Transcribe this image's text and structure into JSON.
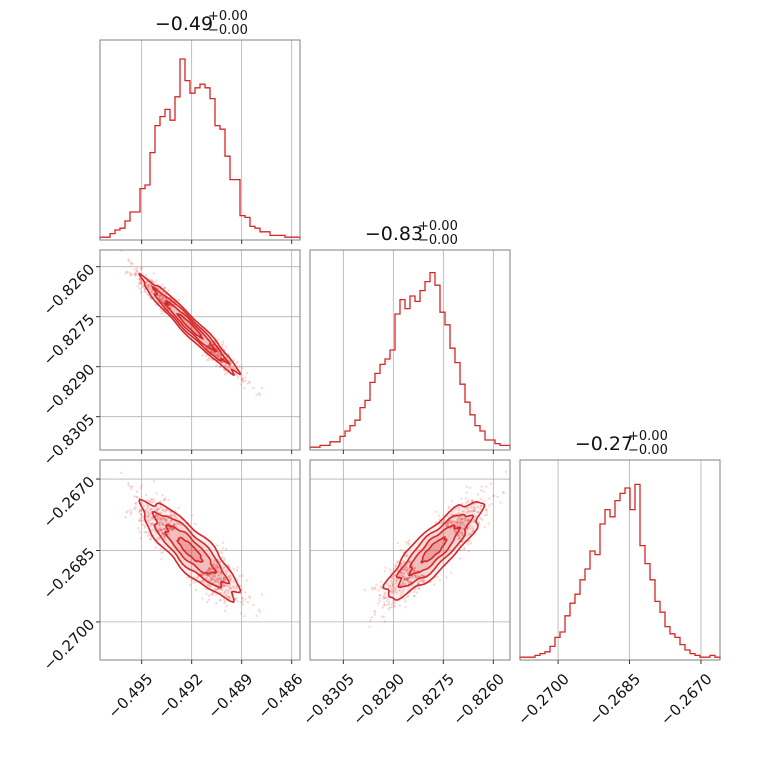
{
  "chart_data": {
    "type": "corner",
    "color": "#d62728",
    "parameters": [
      {
        "title": "−0.49",
        "err_plus": "+0.00",
        "err_minus": "−0.00",
        "range": [
          -0.4975,
          -0.4855
        ],
        "ticks": [
          -0.495,
          -0.492,
          -0.489,
          -0.486
        ],
        "tick_labels": [
          "−0.495",
          "−0.492",
          "−0.489",
          "−0.486"
        ],
        "hist": [
          0.01,
          0.01,
          0.03,
          0.05,
          0.06,
          0.1,
          0.15,
          0.15,
          0.28,
          0.3,
          0.48,
          0.63,
          0.68,
          0.72,
          0.66,
          0.79,
          1.0,
          0.88,
          0.81,
          0.84,
          0.86,
          0.84,
          0.78,
          0.63,
          0.61,
          0.46,
          0.33,
          0.33,
          0.13,
          0.12,
          0.07,
          0.06,
          0.04,
          0.04,
          0.02,
          0.02,
          0.02,
          0.01,
          0.01,
          0.01
        ],
        "grid": true
      },
      {
        "title": "−0.83",
        "err_plus": "+0.00",
        "err_minus": "−0.00",
        "range": [
          -0.8315,
          -0.8255
        ],
        "ticks": [
          -0.8305,
          -0.829,
          -0.8275,
          -0.826
        ],
        "tick_labels": [
          "−0.8305",
          "−0.8290",
          "−0.8275",
          "−0.8260"
        ],
        "hist": [
          0.01,
          0.01,
          0.02,
          0.02,
          0.04,
          0.04,
          0.07,
          0.1,
          0.13,
          0.16,
          0.23,
          0.27,
          0.37,
          0.42,
          0.47,
          0.5,
          0.55,
          0.75,
          0.83,
          0.78,
          0.85,
          0.82,
          0.88,
          0.93,
          0.98,
          0.91,
          0.76,
          0.69,
          0.56,
          0.48,
          0.36,
          0.26,
          0.19,
          0.13,
          0.1,
          0.05,
          0.05,
          0.03,
          0.02,
          0.02
        ],
        "grid": true
      },
      {
        "title": "−0.27",
        "err_plus": "+0.00",
        "err_minus": "−0.00",
        "range": [
          -0.2708,
          -0.2666
        ],
        "ticks": [
          -0.27,
          -0.2685,
          -0.267
        ],
        "tick_labels": [
          "−0.2700",
          "−0.2685",
          "−0.2670"
        ],
        "hist": [
          0.01,
          0.01,
          0.01,
          0.02,
          0.03,
          0.04,
          0.07,
          0.12,
          0.15,
          0.24,
          0.31,
          0.36,
          0.44,
          0.5,
          0.6,
          0.58,
          0.75,
          0.83,
          0.79,
          0.88,
          0.92,
          0.95,
          0.83,
          0.97,
          0.63,
          0.53,
          0.44,
          0.32,
          0.26,
          0.18,
          0.14,
          0.12,
          0.08,
          0.05,
          0.03,
          0.02,
          0.01,
          0.01,
          0.02,
          0.01
        ],
        "grid": true
      }
    ],
    "pairs": [
      {
        "x_param": 0,
        "y_param": 1,
        "relation": "linear",
        "slope": -0.5,
        "scatter": true,
        "contours": true
      },
      {
        "x_param": 0,
        "y_param": 2,
        "relation": "linear",
        "scatter": true,
        "contours": true
      },
      {
        "x_param": 1,
        "y_param": 2,
        "relation": "linear",
        "scatter": true,
        "contours": true
      }
    ]
  }
}
